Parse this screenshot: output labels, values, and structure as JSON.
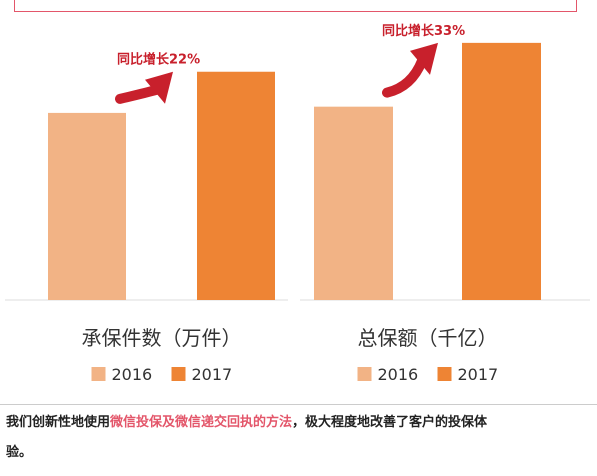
{
  "colors": {
    "bar_2016": "#f2b385",
    "bar_2017": "#ee8434",
    "arrow": "#c8202c",
    "annotation_text": "#c8202c",
    "axis_label": "#333333",
    "highlight": "#e3566a"
  },
  "chart_data": [
    {
      "type": "bar",
      "title": "承保件数（万件）",
      "categories": [
        "2016",
        "2017"
      ],
      "values": [
        100,
        122
      ],
      "annotation": "同比增长22%",
      "legend": [
        "2016",
        "2017"
      ],
      "ylim": [
        0,
        155
      ],
      "grid": false,
      "legend_placement": "bottom"
    },
    {
      "type": "bar",
      "title": "总保额（千亿）",
      "categories": [
        "2016",
        "2017"
      ],
      "values": [
        100,
        133
      ],
      "annotation": "同比增长33%",
      "legend": [
        "2016",
        "2017"
      ],
      "ylim": [
        0,
        150
      ],
      "grid": false,
      "legend_placement": "bottom"
    }
  ],
  "caption": {
    "before": "我们创新性地使用",
    "highlight": "微信投保及微信递交回执的方法",
    "after": "，极大程度地改善了客户的投保体",
    "line2": "验。"
  }
}
